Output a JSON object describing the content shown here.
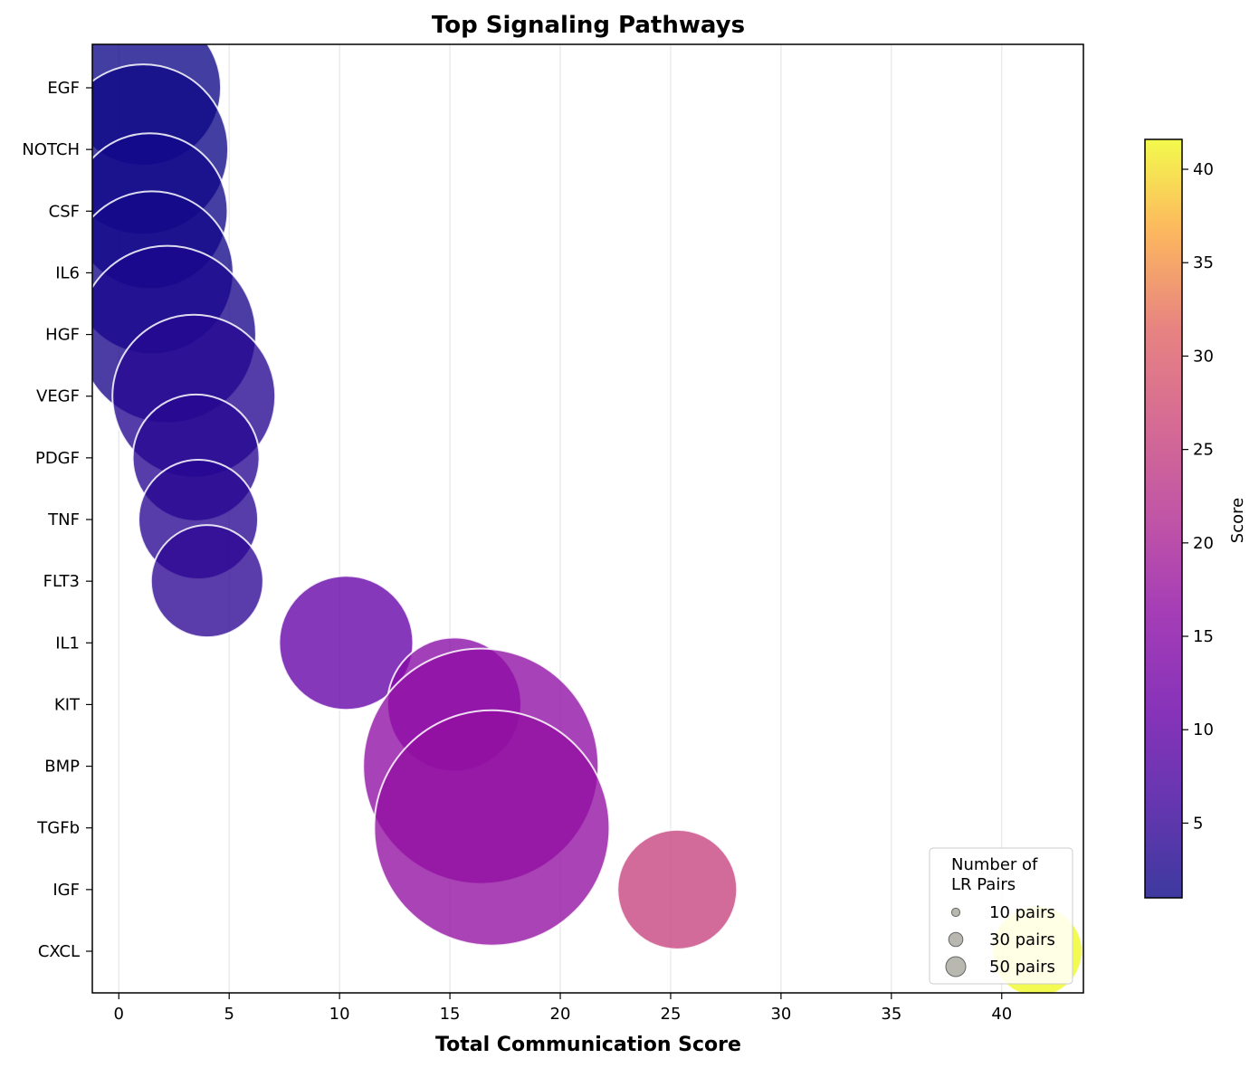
{
  "chart_data": {
    "type": "scatter",
    "title": "Top Signaling Pathways",
    "xlabel": "Total Communication Score",
    "ylabel": "",
    "xlim": [
      -1.2,
      43.7
    ],
    "xticks": [
      0,
      5,
      10,
      15,
      20,
      25,
      30,
      35,
      40
    ],
    "grid": "vertical",
    "categories": [
      "EGF",
      "NOTCH",
      "CSF",
      "IL6",
      "HGF",
      "VEGF",
      "PDGF",
      "TNF",
      "FLT3",
      "IL1",
      "KIT",
      "BMP",
      "TGFb",
      "IGF",
      "CXCL"
    ],
    "points": [
      {
        "category": "EGF",
        "x": 1.1,
        "n_pairs": 38
      },
      {
        "category": "NOTCH",
        "x": 1.1,
        "n_pairs": 42
      },
      {
        "category": "CSF",
        "x": 1.4,
        "n_pairs": 38
      },
      {
        "category": "IL6",
        "x": 1.5,
        "n_pairs": 40
      },
      {
        "category": "HGF",
        "x": 2.2,
        "n_pairs": 44
      },
      {
        "category": "VEGF",
        "x": 3.4,
        "n_pairs": 40
      },
      {
        "category": "PDGF",
        "x": 3.5,
        "n_pairs": 30
      },
      {
        "category": "TNF",
        "x": 3.6,
        "n_pairs": 28
      },
      {
        "category": "FLT3",
        "x": 4.0,
        "n_pairs": 26
      },
      {
        "category": "IL1",
        "x": 10.3,
        "n_pairs": 32
      },
      {
        "category": "KIT",
        "x": 15.2,
        "n_pairs": 32
      },
      {
        "category": "BMP",
        "x": 16.4,
        "n_pairs": 60
      },
      {
        "category": "TGFb",
        "x": 16.9,
        "n_pairs": 60
      },
      {
        "category": "IGF",
        "x": 25.3,
        "n_pairs": 28
      },
      {
        "category": "CXCL",
        "x": 41.6,
        "n_pairs": 20
      }
    ],
    "color_encoding": "score",
    "colorbar": {
      "label": "Score",
      "range": [
        1.0,
        41.6
      ],
      "ticks": [
        5,
        10,
        15,
        20,
        25,
        30,
        35,
        40
      ],
      "colormap": "plasma"
    },
    "legend": {
      "title_line1": "Number of",
      "title_line2": "LR Pairs",
      "placement": "lower-right",
      "entries": [
        {
          "label": "10 pairs",
          "n_pairs": 10
        },
        {
          "label": "30 pairs",
          "n_pairs": 30
        },
        {
          "label": "50 pairs",
          "n_pairs": 50
        }
      ]
    }
  }
}
